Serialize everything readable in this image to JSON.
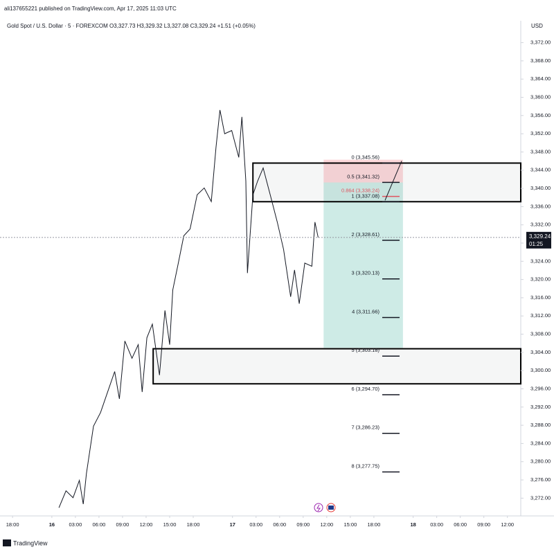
{
  "header": "ali137655221 published on TradingView.com, Apr 17, 2025 11:03 UTC",
  "footer": "TradingView",
  "chart_data": {
    "type": "line",
    "title": "Gold Spot / U.S. Dollar · 5 · FOREXCOM  O3,327.73  H3,329.32  L3,327.08  C3,329.24  +1.51 (+0.05%)",
    "y_unit": "USD",
    "grid": false,
    "series": [
      {
        "name": "Gold Spot / U.S. Dollar",
        "color": "#131722",
        "x": [
          5.9,
          6.8,
          7.7,
          8.5,
          9.0,
          9.4,
          10.3,
          11.2,
          12.1,
          13.0,
          13.6,
          14.3,
          15.2,
          16.0,
          16.5,
          17.1,
          17.8,
          18.7,
          19.4,
          20.0,
          20.4,
          21.1,
          21.8,
          22.6,
          23.5,
          24.4,
          25.3,
          25.9,
          26.4,
          27.0,
          27.9,
          28.8,
          29.2,
          29.7,
          29.9,
          30.6,
          31.2,
          31.9,
          32.8,
          33.7,
          34.5,
          35.4,
          35.9,
          36.5,
          37.2,
          38.1,
          38.5,
          38.9
        ],
        "values": [
          3269.9,
          3273.6,
          3272.1,
          3275.9,
          3270.7,
          3277.4,
          3287.8,
          3290.8,
          3295.3,
          3299.8,
          3293.8,
          3306.5,
          3302.7,
          3305.7,
          3295.3,
          3307.2,
          3310.2,
          3299.0,
          3313.2,
          3305.7,
          3317.7,
          3323.6,
          3329.6,
          3331.1,
          3338.6,
          3340.1,
          3337.1,
          3349.0,
          3357.2,
          3352.0,
          3352.7,
          3346.8,
          3355.7,
          3341.6,
          3321.4,
          3338.6,
          3341.6,
          3344.5,
          3338.6,
          3332.6,
          3326.6,
          3316.2,
          3322.1,
          3314.7,
          3323.6,
          3322.9,
          3332.6,
          3329.24
        ]
      }
    ],
    "xlim": [
      -1.6,
      64.7
    ],
    "xticks": [
      {
        "value": 0,
        "label": "18:00"
      },
      {
        "value": 5,
        "label": "16"
      },
      {
        "value": 8,
        "label": "03:00"
      },
      {
        "value": 11,
        "label": "06:00"
      },
      {
        "value": 14,
        "label": "09:00"
      },
      {
        "value": 17,
        "label": "12:00"
      },
      {
        "value": 20,
        "label": "15:00"
      },
      {
        "value": 23,
        "label": "18:00"
      },
      {
        "value": 28,
        "label": "17"
      },
      {
        "value": 31,
        "label": "03:00"
      },
      {
        "value": 34,
        "label": "06:00"
      },
      {
        "value": 37,
        "label": "09:00"
      },
      {
        "value": 40,
        "label": "12:00"
      },
      {
        "value": 43,
        "label": "15:00"
      },
      {
        "value": 46,
        "label": "18:00"
      },
      {
        "value": 51,
        "label": "18"
      },
      {
        "value": 54,
        "label": "03:00"
      },
      {
        "value": 57,
        "label": "06:00"
      },
      {
        "value": 60,
        "label": "09:00"
      },
      {
        "value": 63,
        "label": "12:00"
      }
    ],
    "ylim": [
      3268.1,
      3376.8
    ],
    "yticks": [
      {
        "value": 3272,
        "label": "3,272.00"
      },
      {
        "value": 3276,
        "label": "3,276.00"
      },
      {
        "value": 3280,
        "label": "3,280.00"
      },
      {
        "value": 3284,
        "label": "3,284.00"
      },
      {
        "value": 3288,
        "label": "3,288.00"
      },
      {
        "value": 3292,
        "label": "3,292.00"
      },
      {
        "value": 3296,
        "label": "3,296.00"
      },
      {
        "value": 3300,
        "label": "3,300.00"
      },
      {
        "value": 3304,
        "label": "3,304.00"
      },
      {
        "value": 3308,
        "label": "3,308.00"
      },
      {
        "value": 3312,
        "label": "3,312.00"
      },
      {
        "value": 3316,
        "label": "3,316.00"
      },
      {
        "value": 3320,
        "label": "3,320.00"
      },
      {
        "value": 3324,
        "label": "3,324.00"
      },
      {
        "value": 3328,
        "label": "3,328.00"
      },
      {
        "value": 3332,
        "label": "3,332.00"
      },
      {
        "value": 3336,
        "label": "3,336.00"
      },
      {
        "value": 3340,
        "label": "3,340.00"
      },
      {
        "value": 3344,
        "label": "3,344.00"
      },
      {
        "value": 3348,
        "label": "3,348.00"
      },
      {
        "value": 3352,
        "label": "3,352.00"
      },
      {
        "value": 3356,
        "label": "3,356.00"
      },
      {
        "value": 3360,
        "label": "3,360.00"
      },
      {
        "value": 3364,
        "label": "3,364.00"
      },
      {
        "value": 3368,
        "label": "3,368.00"
      },
      {
        "value": 3372,
        "label": "3,372.00"
      }
    ],
    "last_price": {
      "value": 3329.24,
      "label": "3,329.24"
    },
    "countdown": "01:25",
    "boxes": [
      {
        "x": [
          30.6,
          64.7
        ],
        "top": 3345.56,
        "bottom": 3337.08
      },
      {
        "x": [
          17.9,
          64.7
        ],
        "top": 3304.8,
        "bottom": 3297.1
      }
    ],
    "position": {
      "x": [
        39.6,
        49.7
      ],
      "stop": [
        3341.3,
        3346.3
      ],
      "target": [
        3305.0,
        3341.3
      ]
    },
    "fib_levels": [
      {
        "label": "0 (3,345.56)",
        "value": 3345.56,
        "color": "#131722"
      },
      {
        "label": "0.5 (3,341.32)",
        "value": 3341.32,
        "color": "#131722"
      },
      {
        "label": "0.864 (3,338.24)",
        "value": 3338.24,
        "color": "#e05560"
      },
      {
        "label": "1 (3,337.08)",
        "value": 3337.08,
        "color": "#131722"
      },
      {
        "label": "2 (3,328.61)",
        "value": 3328.61,
        "color": "#131722"
      },
      {
        "label": "3 (3,320.13)",
        "value": 3320.13,
        "color": "#131722"
      },
      {
        "label": "4 (3,311.66)",
        "value": 3311.66,
        "color": "#131722"
      },
      {
        "label": "5 (3,303.18)",
        "value": 3303.18,
        "color": "#131722"
      },
      {
        "label": "6 (3,294.70)",
        "value": 3294.7,
        "color": "#131722"
      },
      {
        "label": "7 (3,286.23)",
        "value": 3286.23,
        "color": "#131722"
      },
      {
        "label": "8 (3,277.75)",
        "value": 3277.75,
        "color": "#131722"
      }
    ]
  }
}
